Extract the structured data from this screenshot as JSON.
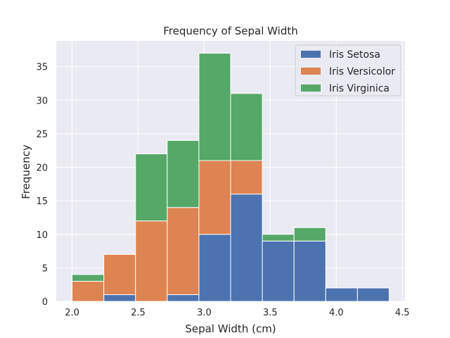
{
  "chart_data": {
    "type": "bar",
    "stacked": true,
    "title": "Frequency of Sepal Width",
    "xlabel": "Sepal Width (cm)",
    "ylabel": "Frequency",
    "xlim": [
      1.88,
      4.52
    ],
    "ylim": [
      0,
      38.85
    ],
    "xticks": [
      2.0,
      2.5,
      3.0,
      3.5,
      4.0,
      4.5
    ],
    "xtick_labels": [
      "2.0",
      "2.5",
      "3.0",
      "3.5",
      "4.0",
      "4.5"
    ],
    "yticks": [
      0,
      5,
      10,
      15,
      20,
      25,
      30,
      35
    ],
    "ytick_labels": [
      "0",
      "5",
      "10",
      "15",
      "20",
      "25",
      "30",
      "35"
    ],
    "bin_edges": [
      2.0,
      2.24,
      2.48,
      2.72,
      2.96,
      3.2,
      3.44,
      3.68,
      3.92,
      4.16,
      4.4
    ],
    "series": [
      {
        "name": "Iris Setosa",
        "color": "#4c72b0",
        "values": [
          0,
          1,
          0,
          1,
          10,
          16,
          9,
          9,
          2,
          2
        ]
      },
      {
        "name": "Iris Versicolor",
        "color": "#dd8452",
        "values": [
          3,
          6,
          12,
          13,
          11,
          5,
          0,
          0,
          0,
          0
        ]
      },
      {
        "name": "Iris Virginica",
        "color": "#55a868",
        "values": [
          1,
          0,
          10,
          10,
          16,
          10,
          1,
          2,
          0,
          0
        ]
      }
    ],
    "grid": true,
    "legend_position": "top-right",
    "background_color": "#eaeaf2",
    "grid_color": "#ffffff"
  }
}
